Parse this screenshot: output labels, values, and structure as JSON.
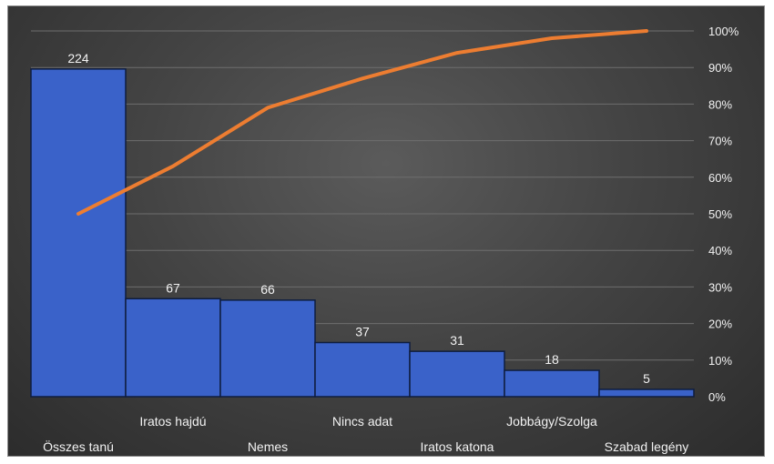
{
  "chart_data": {
    "type": "bar",
    "categories": [
      "Összes tanú",
      "Iratos hajdú",
      "Nemes",
      "Nincs adat",
      "Iratos katona",
      "Jobbágy/Szolga",
      "Szabad legény"
    ],
    "values": [
      224,
      67,
      66,
      37,
      31,
      18,
      5
    ],
    "series": [
      {
        "type": "bar",
        "values": [
          224,
          67,
          66,
          37,
          31,
          18,
          5
        ]
      },
      {
        "type": "line",
        "values": [
          50,
          63,
          79,
          87,
          94,
          98,
          100
        ],
        "axis": "secondary"
      }
    ],
    "y2_ticks": [
      "0%",
      "10%",
      "20%",
      "30%",
      "40%",
      "50%",
      "60%",
      "70%",
      "80%",
      "90%",
      "100%"
    ],
    "ylim": [
      0,
      250
    ],
    "y2lim": [
      0,
      100
    ],
    "grid": true,
    "legend": "none",
    "colors": {
      "bar": "#3a62c9",
      "bar_border": "#0e1d3f",
      "line": "#ed7d31",
      "grid": "#6e6e6e",
      "text": "#f2f2f2"
    }
  }
}
